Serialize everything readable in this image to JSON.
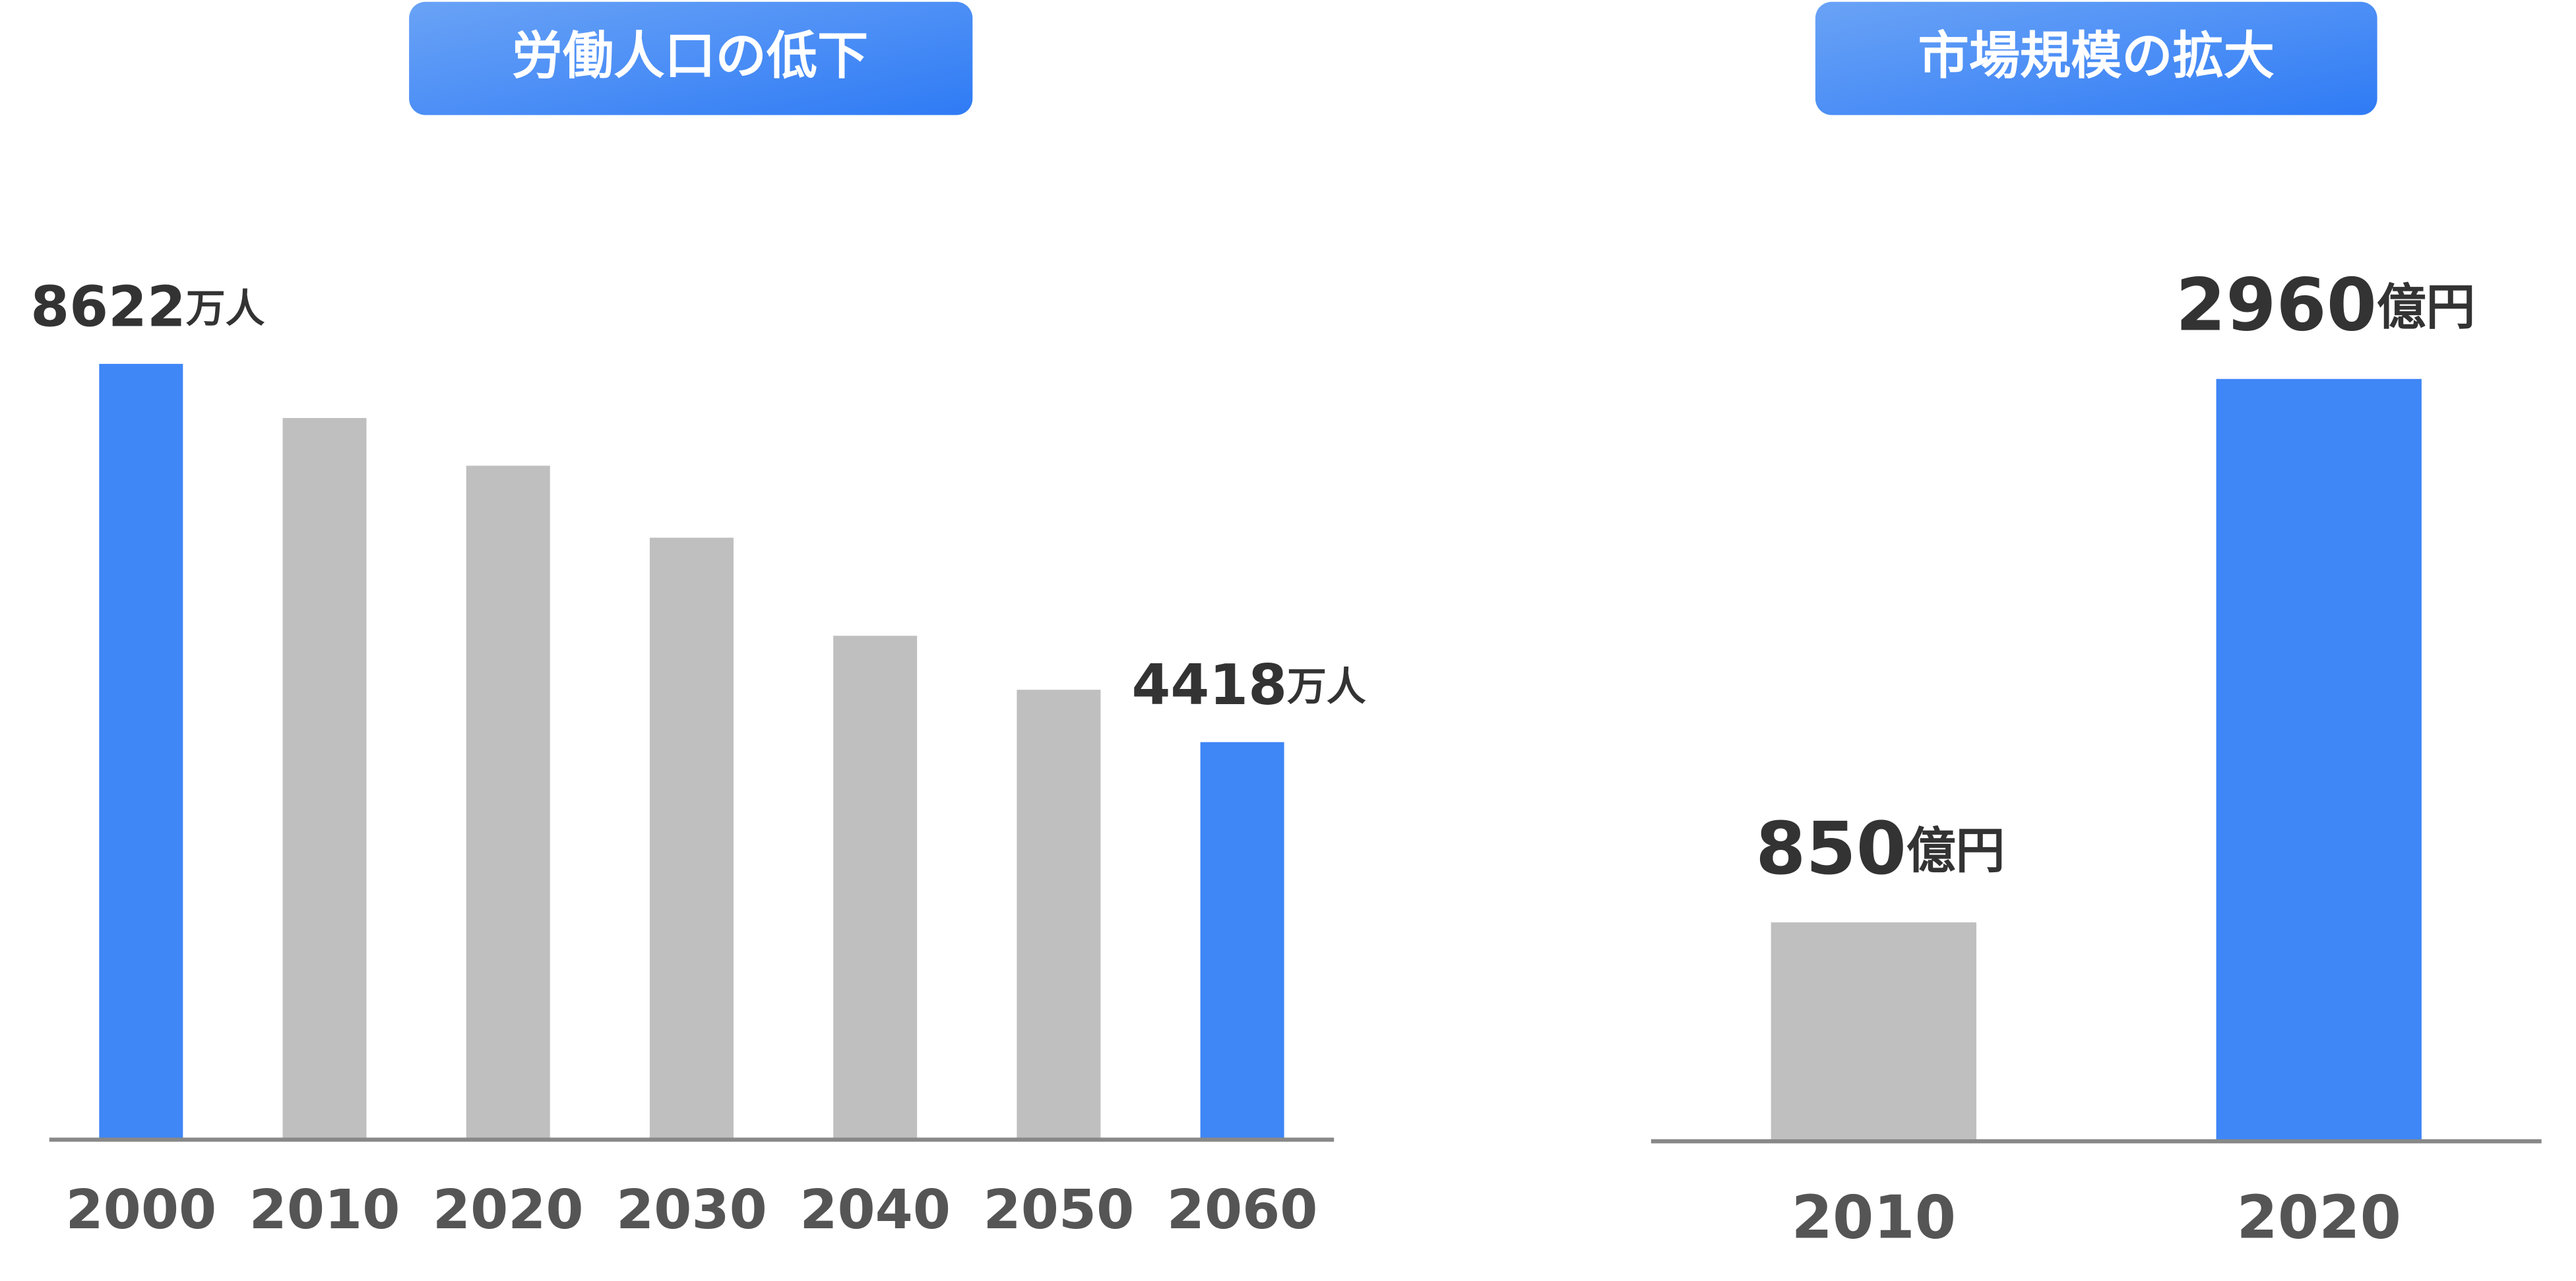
{
  "chart_data": [
    {
      "type": "bar",
      "title": "労働人口の低下",
      "categories": [
        "2000",
        "2010",
        "2020",
        "2030",
        "2040",
        "2050",
        "2060"
      ],
      "values": [
        8622,
        8020,
        7490,
        6690,
        5600,
        5000,
        4418
      ],
      "value_labels": [
        "8622万人",
        null,
        null,
        null,
        null,
        null,
        "4418万人"
      ],
      "colors": [
        "#3f86f6",
        "#bfbfbf",
        "#bfbfbf",
        "#bfbfbf",
        "#bfbfbf",
        "#bfbfbf",
        "#3f86f6"
      ],
      "ylim": [
        0,
        10000
      ]
    },
    {
      "type": "bar",
      "title": "市場規模の拡大",
      "categories": [
        "2010",
        "2020"
      ],
      "values": [
        850,
        2960
      ],
      "value_labels": [
        "850億円",
        "2960億円"
      ],
      "colors": [
        "#bfbfbf",
        "#3f86f6"
      ],
      "ylim": [
        0,
        3500
      ]
    }
  ]
}
